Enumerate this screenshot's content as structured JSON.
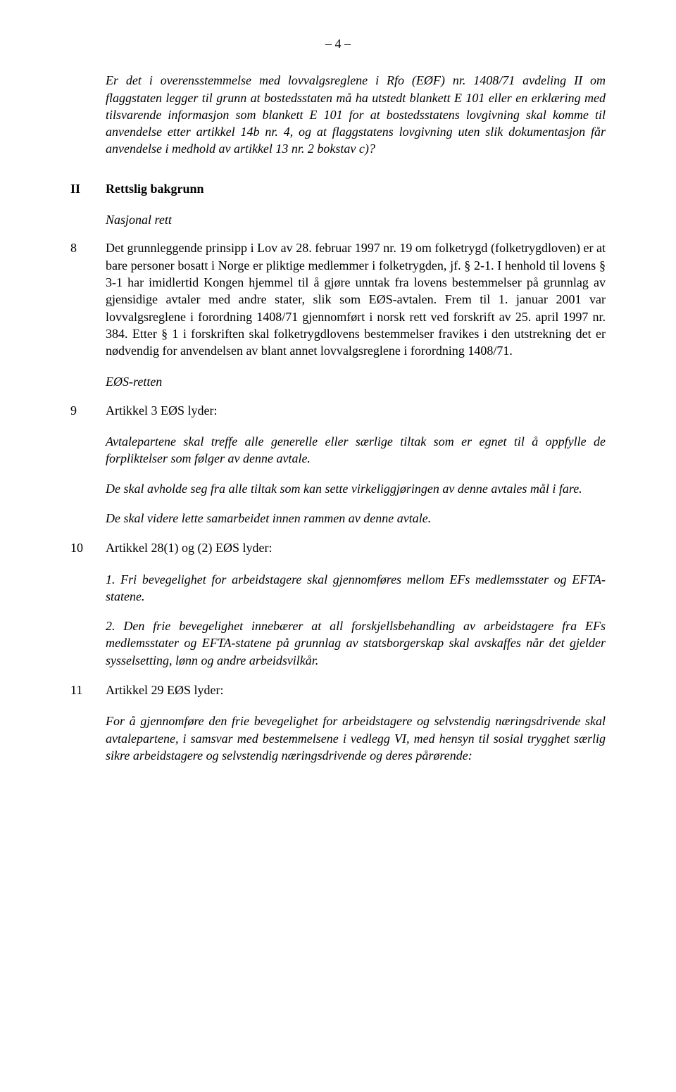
{
  "pageNumber": "– 4 –",
  "intro": "Er det i overensstemmelse med lovvalgsreglene i Rfo (EØF) nr. 1408/71 avdeling II om flaggstaten legger til grunn at bostedsstaten må ha utstedt blankett E 101 eller en erklæring med tilsvarende informasjon som blankett E 101 for at bostedsstatens lovgivning skal komme til anvendelse etter artikkel 14b nr. 4, og at flaggstatens lovgivning uten slik dokumentasjon får anvendelse i medhold av artikkel 13 nr. 2 bokstav c)?",
  "sectionII": {
    "num": "II",
    "title": "Rettslig bakgrunn"
  },
  "nasjonalRett": "Nasjonal rett",
  "para8": {
    "num": "8",
    "text": "Det grunnleggende prinsipp i Lov av 28. februar 1997 nr. 19 om folketrygd (folketrygdloven) er at bare personer bosatt i Norge er pliktige medlemmer i folketrygden, jf. § 2-1. I henhold til lovens § 3-1 har imidlertid Kongen hjemmel til å gjøre unntak fra lovens bestemmelser på grunnlag av gjensidige avtaler med andre stater, slik som EØS-avtalen. Frem til 1. januar 2001 var lovvalgsreglene i forordning 1408/71 gjennomført i norsk rett ved forskrift av 25. april 1997 nr. 384. Etter § 1 i forskriften skal folketrygdlovens bestemmelser fravikes i den utstrekning det er nødvendig for anvendelsen av blant annet lovvalgsreglene i forordning 1408/71."
  },
  "eosRetten": "EØS-retten",
  "para9": {
    "num": "9",
    "text": "Artikkel 3 EØS lyder:"
  },
  "quote9a": "Avtalepartene skal treffe alle generelle eller særlige tiltak som er egnet til å oppfylle de forpliktelser som følger av denne avtale.",
  "quote9b": "De skal avholde seg fra alle tiltak som kan sette virkeliggjøringen av denne avtales mål i fare.",
  "quote9c": "De skal videre lette samarbeidet innen rammen av denne avtale.",
  "para10": {
    "num": "10",
    "text": "Artikkel 28(1) og (2) EØS lyder:"
  },
  "quote10a": "1. Fri bevegelighet for arbeidstagere skal gjennomføres mellom EFs medlemsstater og EFTA-statene.",
  "quote10b": "2. Den frie bevegelighet innebærer at all forskjellsbehandling av arbeidstagere fra EFs medlemsstater og EFTA-statene på grunnlag av statsborgerskap skal avskaffes når det gjelder sysselsetting, lønn og andre arbeidsvilkår.",
  "para11": {
    "num": "11",
    "text": "Artikkel 29 EØS lyder:"
  },
  "quote11": "For å gjennomføre den frie bevegelighet for arbeidstagere og selvstendig næringsdrivende skal avtalepartene, i samsvar med bestemmelsene i vedlegg VI, med hensyn til sosial trygghet særlig sikre arbeidstagere og selvstendig næringsdrivende og deres pårørende:"
}
